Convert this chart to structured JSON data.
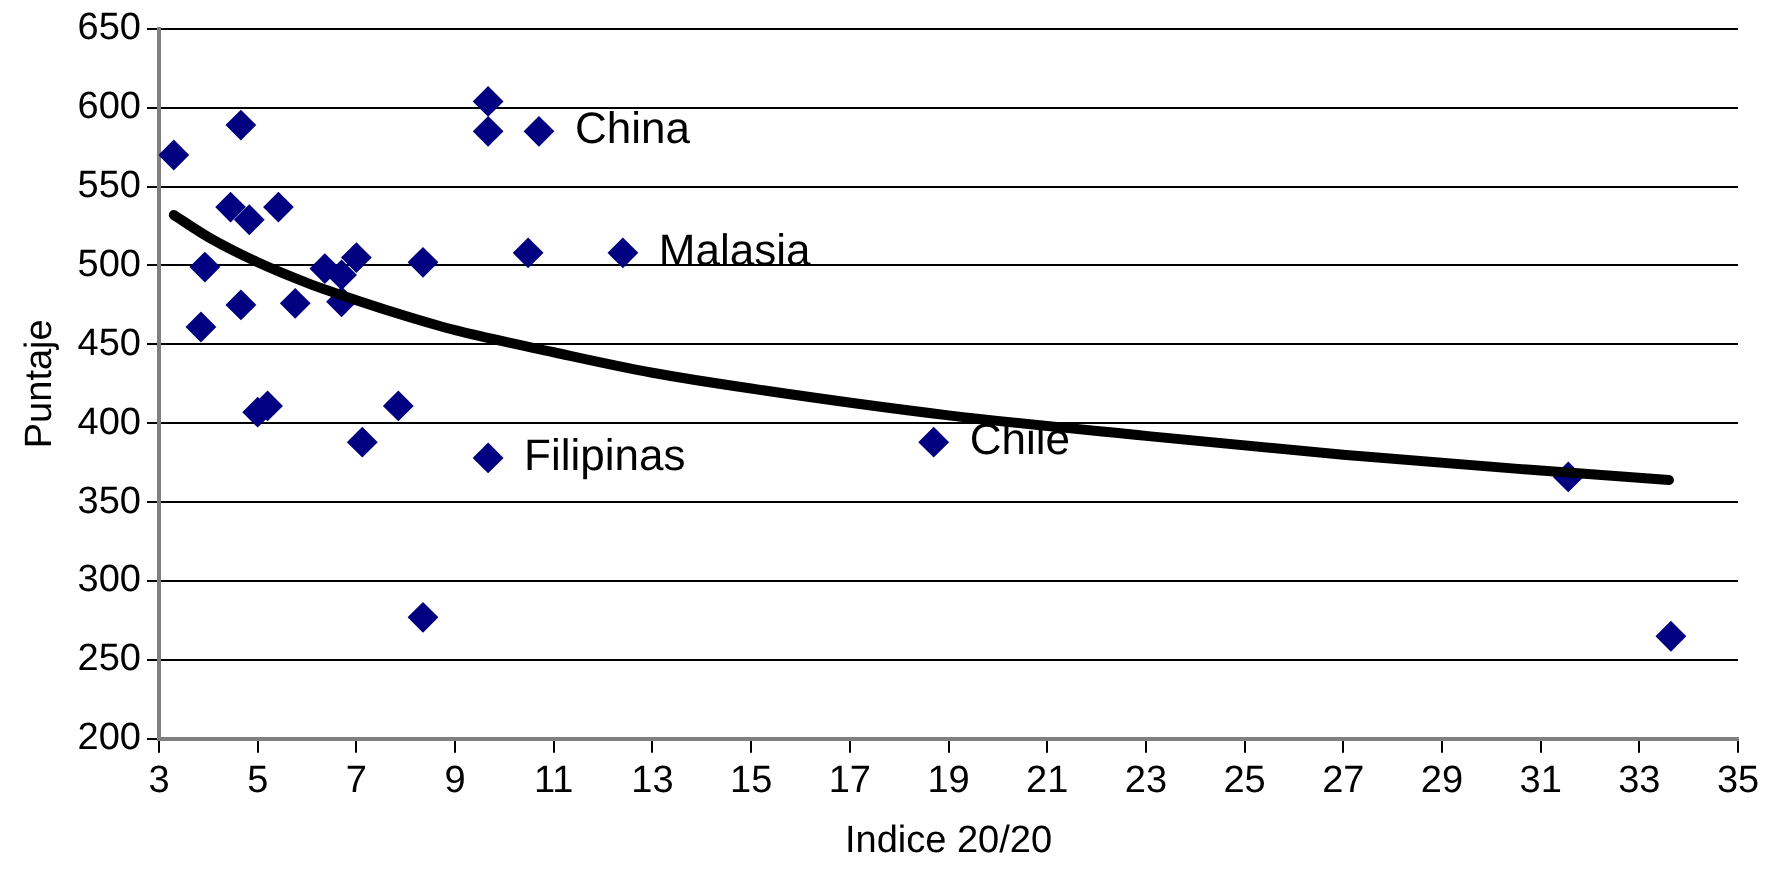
{
  "chart_data": {
    "type": "scatter",
    "xlabel": "Indice 20/20",
    "ylabel": "Puntaje",
    "xlim": [
      3,
      35
    ],
    "xticks": [
      3,
      5,
      7,
      9,
      11,
      13,
      15,
      17,
      19,
      21,
      23,
      25,
      27,
      29,
      31,
      33,
      35
    ],
    "ylim": [
      200,
      650
    ],
    "yticks": [
      200,
      250,
      300,
      350,
      400,
      450,
      500,
      550,
      600,
      650
    ],
    "grid": "y",
    "legend": false,
    "marker": "diamond",
    "series": [
      {
        "color": "#000080",
        "x": [
          3.3,
          3.93,
          3.85,
          4.45,
          4.83,
          5.42,
          4.66,
          4.66,
          5.0,
          5.2,
          5.76,
          6.36,
          6.7,
          6.7,
          7.0,
          8.35,
          7.85,
          7.12,
          9.67,
          8.35,
          9.67,
          9.67,
          10.7,
          10.48,
          12.4,
          18.7,
          31.56,
          33.64
        ],
        "values": [
          570,
          499,
          461,
          537,
          529,
          537,
          589,
          475,
          407,
          411,
          476,
          498,
          494,
          477,
          505,
          502,
          411,
          388,
          378,
          277,
          604,
          585,
          585,
          508,
          508,
          388,
          366,
          265
        ]
      },
      {
        "type": "line",
        "color": "#000000",
        "marker": "none",
        "x": [
          3.3,
          4,
          5,
          6,
          7,
          8,
          9,
          11,
          13,
          15,
          19,
          23,
          27,
          31,
          33.6
        ],
        "values": [
          532,
          518,
          502,
          489,
          478,
          468,
          459,
          445,
          432,
          422,
          405,
          392,
          380,
          370,
          364
        ]
      }
    ],
    "annotations": [
      {
        "text": "China",
        "x": 10.7,
        "y": 585
      },
      {
        "text": "Malasia",
        "x": 12.4,
        "y": 508
      },
      {
        "text": "Filipinas",
        "x": 9.67,
        "y": 378
      },
      {
        "text": "Chile",
        "x": 18.7,
        "y": 388
      }
    ]
  }
}
